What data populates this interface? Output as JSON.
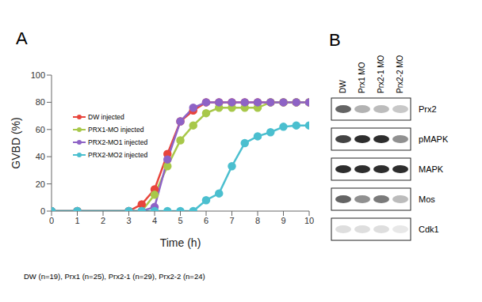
{
  "chart_data": {
    "type": "line",
    "title": "A",
    "x_label": "Time (h)",
    "y_label": "GVBD (%)",
    "x": [
      0,
      1,
      3,
      3.5,
      4,
      4.5,
      5,
      5.5,
      6,
      6.5,
      7,
      7.5,
      8,
      8.5,
      9,
      9.5,
      10
    ],
    "xlim": [
      0,
      10
    ],
    "xticks": [
      0,
      1,
      2,
      3,
      4,
      5,
      6,
      7,
      8,
      9,
      10
    ],
    "ylim": [
      0,
      100
    ],
    "yticks": [
      0,
      20,
      40,
      60,
      80,
      100
    ],
    "grid": false,
    "legend": "upper left",
    "series": [
      {
        "name": "DW injected",
        "color": "#e8453c",
        "marker": "circle",
        "values": [
          0,
          0,
          0,
          5,
          16,
          42,
          66,
          74,
          80,
          80,
          80,
          80,
          80,
          80,
          80,
          80,
          80
        ]
      },
      {
        "name": "PRX1-MO injected",
        "color": "#a8c84a",
        "marker": "circle",
        "values": [
          0,
          0,
          0,
          0,
          12,
          33,
          52,
          63,
          72,
          76,
          76,
          76,
          76,
          80,
          80,
          80,
          80
        ]
      },
      {
        "name": "PRX2-MO1 injected",
        "color": "#8e63c6",
        "marker": "circle",
        "values": [
          0,
          0,
          0,
          0,
          3,
          38,
          66,
          76,
          80,
          80,
          80,
          80,
          80,
          80,
          80,
          80,
          80
        ]
      },
      {
        "name": "PRX2-MO2 injected",
        "color": "#4bbfcf",
        "marker": "circle",
        "values": [
          0,
          0,
          0,
          0,
          0,
          0,
          0,
          0,
          8,
          13,
          33,
          50,
          55,
          58,
          62,
          63,
          63
        ]
      }
    ],
    "annotations": [
      "DW (n=19), Prx1 (n=25), Prx2-1 (n=29), Prx2-2 (n=24)"
    ]
  },
  "blot": {
    "label": "B",
    "lanes": [
      "DW",
      "Prx1 MO",
      "Prx2-1 MO",
      "Prx2-2 MO"
    ],
    "rows": [
      {
        "name": "Prx2",
        "intensity": [
          0.7,
          0.35,
          0.3,
          0.25
        ]
      },
      {
        "name": "pMAPK",
        "intensity": [
          0.85,
          0.95,
          0.95,
          0.5
        ]
      },
      {
        "name": "MAPK",
        "intensity": [
          0.95,
          0.95,
          0.95,
          0.95
        ]
      },
      {
        "name": "Mos",
        "intensity": [
          0.7,
          0.5,
          0.6,
          0.3
        ]
      },
      {
        "name": "Cdk1",
        "intensity": [
          0.15,
          0.15,
          0.15,
          0.1
        ]
      }
    ]
  }
}
